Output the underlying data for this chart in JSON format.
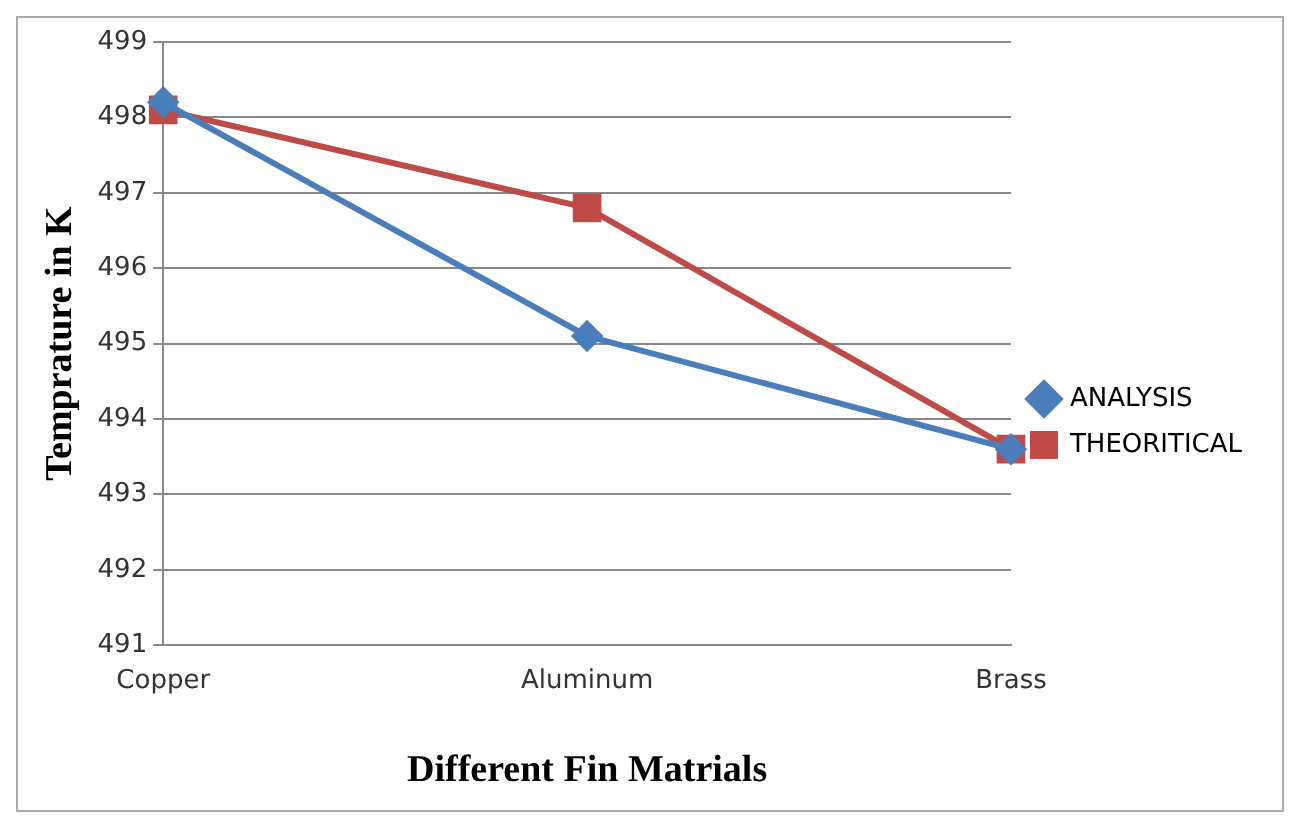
{
  "chart_data": {
    "type": "line",
    "xlabel": "Different Fin Matrials",
    "ylabel": "Temprature in K",
    "categories": [
      "Copper",
      "Aluminum",
      "Brass"
    ],
    "series": [
      {
        "name": "ANALYSIS",
        "color": "#4a7ebb",
        "values": [
          498.2,
          495.1,
          493.6
        ],
        "marker": "diamond"
      },
      {
        "name": "THEORITICAL",
        "color": "#be4b48",
        "values": [
          498.1,
          496.8,
          493.6
        ],
        "marker": "square"
      }
    ],
    "ylim": [
      491,
      499
    ],
    "yticks": [
      491,
      492,
      493,
      494,
      495,
      496,
      497,
      498,
      499
    ],
    "grid": "y",
    "legend": "right"
  }
}
